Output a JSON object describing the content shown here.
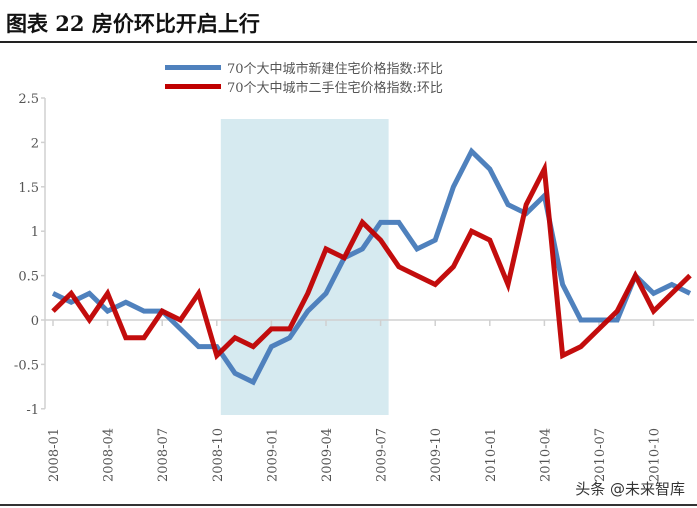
{
  "title": "图表 22 房价环比开启上行",
  "watermark": "头条 @未来智库",
  "chart_data": {
    "type": "line",
    "x": [
      "2008-01",
      "2008-02",
      "2008-03",
      "2008-04",
      "2008-05",
      "2008-06",
      "2008-07",
      "2008-08",
      "2008-09",
      "2008-10",
      "2008-11",
      "2008-12",
      "2009-01",
      "2009-02",
      "2009-03",
      "2009-04",
      "2009-05",
      "2009-06",
      "2009-07",
      "2009-08",
      "2009-09",
      "2009-10",
      "2009-11",
      "2009-12",
      "2010-01",
      "2010-02",
      "2010-03",
      "2010-04",
      "2010-05",
      "2010-06",
      "2010-07",
      "2010-08",
      "2010-09",
      "2010-10",
      "2010-11",
      "2010-12"
    ],
    "x_tick_labels": [
      "2008-01",
      "2008-04",
      "2008-07",
      "2008-10",
      "2009-01",
      "2009-04",
      "2009-07",
      "2009-10",
      "2010-01",
      "2010-04",
      "2010-07",
      "2010-10"
    ],
    "y_tick_labels": [
      "2.5",
      "2",
      "1.5",
      "1",
      "0.5",
      "0",
      "-0.5",
      "-1"
    ],
    "ylim": [
      -1,
      2.5
    ],
    "grid": false,
    "legend_position": "top",
    "shaded_period": [
      "2008-10",
      "2009-07"
    ],
    "shade_color": "#d6eaf0",
    "series": [
      {
        "name": "70个大中城市新建住宅价格指数:环比",
        "color": "#4f81bd",
        "values": [
          0.3,
          0.2,
          0.3,
          0.1,
          0.2,
          0.1,
          0.1,
          -0.1,
          -0.3,
          -0.3,
          -0.6,
          -0.7,
          -0.3,
          -0.2,
          0.1,
          0.3,
          0.7,
          0.8,
          1.1,
          1.1,
          0.8,
          0.9,
          1.5,
          1.9,
          1.7,
          1.3,
          1.2,
          1.4,
          0.4,
          0,
          0,
          0,
          0.5,
          0.3,
          0.4,
          0.3
        ]
      },
      {
        "name": "70个大中城市二手住宅价格指数:环比",
        "color": "#c00000",
        "values": [
          0.1,
          0.3,
          0,
          0.3,
          -0.2,
          -0.2,
          0.1,
          0,
          0.3,
          -0.4,
          -0.2,
          -0.3,
          -0.1,
          -0.1,
          0.3,
          0.8,
          0.7,
          1.1,
          0.9,
          0.6,
          0.5,
          0.4,
          0.6,
          1.0,
          0.9,
          0.4,
          1.3,
          1.7,
          -0.4,
          -0.3,
          -0.1,
          0.1,
          0.5,
          0.1,
          0.3,
          0.5
        ]
      }
    ]
  }
}
